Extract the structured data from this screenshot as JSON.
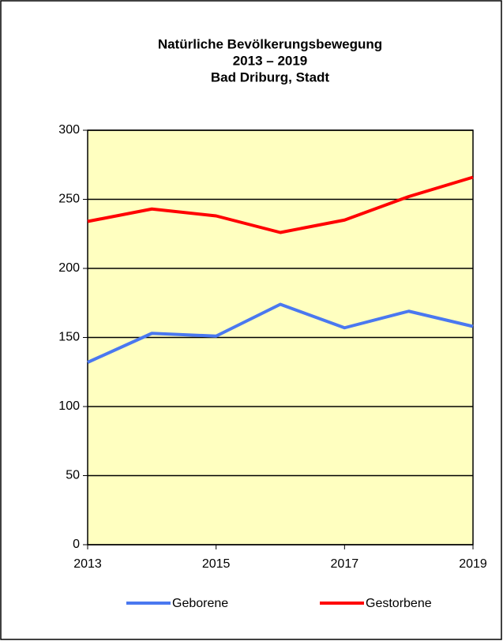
{
  "chart_data": {
    "type": "line",
    "title": "Natürliche Bevölkerungsbewegung",
    "subtitle": [
      "2013 – 2019",
      "Bad Driburg, Stadt"
    ],
    "x": [
      2013,
      2014,
      2015,
      2016,
      2017,
      2018,
      2019
    ],
    "series": [
      {
        "name": "Geborene",
        "color": "#4a78f0",
        "values": [
          132,
          153,
          151,
          174,
          157,
          169,
          158
        ]
      },
      {
        "name": "Gestorbene",
        "color": "#ff0000",
        "values": [
          234,
          243,
          238,
          226,
          235,
          252,
          266
        ]
      }
    ],
    "xlim": [
      2013,
      2019
    ],
    "xticks": [
      2013,
      2015,
      2017,
      2019
    ],
    "ylim": [
      0,
      300
    ],
    "yticks": [
      0,
      50,
      100,
      150,
      200,
      250,
      300
    ],
    "grid": true,
    "legend": "bottom",
    "background": "#ffffc0"
  }
}
